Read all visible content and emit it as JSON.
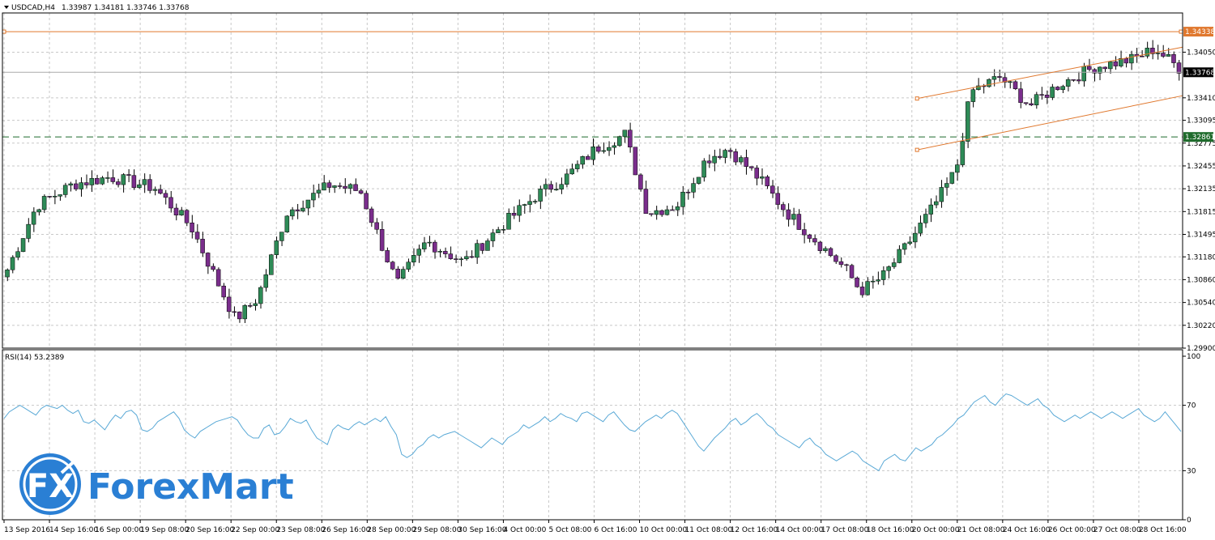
{
  "header": {
    "symbol": "USDCAD,H4",
    "ohlc": "1.33987 1.34181 1.33746 1.33768"
  },
  "indicator": {
    "label": "RSI(14) 53.2389"
  },
  "logo": {
    "fx": "FX",
    "brand": "ForexMart"
  },
  "colors": {
    "bull": "#2e8b57",
    "bear": "#7a2d8c",
    "wick": "#000000",
    "grid": "#c8c8c8",
    "resistance": "#e0782e",
    "support": "#1f6b2c",
    "channel": "#e0782e",
    "rsi_line": "#5aa9d6",
    "brand_blue": "#2a7fd4",
    "brand_dark": "#1a4f9c"
  },
  "chart_data": [
    {
      "type": "candlestick",
      "title": "",
      "y_ticks": [
        1.3405,
        1.3341,
        1.33095,
        1.32775,
        1.32455,
        1.32135,
        1.31815,
        1.31495,
        1.3118,
        1.3086,
        1.3054,
        1.3022,
        1.299
      ],
      "ylim": [
        1.299,
        1.346
      ],
      "x_ticks": [
        "13 Sep 2016",
        "14 Sep 16:00",
        "16 Sep 00:00",
        "19 Sep 08:00",
        "20 Sep 16:00",
        "22 Sep 00:00",
        "23 Sep 08:00",
        "26 Sep 16:00",
        "28 Sep 00:00",
        "29 Sep 08:00",
        "30 Sep 16:00",
        "4 Oct 00:00",
        "5 Oct 08:00",
        "6 Oct 16:00",
        "10 Oct 00:00",
        "11 Oct 08:00",
        "12 Oct 16:00",
        "14 Oct 00:00",
        "17 Oct 08:00",
        "18 Oct 16:00",
        "20 Oct 00:00",
        "21 Oct 08:00",
        "24 Oct 16:00",
        "26 Oct 00:00",
        "27 Oct 08:00",
        "28 Oct 16:00"
      ],
      "price_tags": [
        {
          "value": "1.34338",
          "kind": "resistance"
        },
        {
          "value": "1.33768",
          "kind": "current"
        },
        {
          "value": "1.32861",
          "kind": "support"
        }
      ],
      "resistance_level": 1.34338,
      "support_level": 1.32861,
      "current_price": 1.33768,
      "channel": {
        "upper": [
          [
            0.775,
            1.334
          ],
          [
            1.0,
            1.3412
          ]
        ],
        "lower": [
          [
            0.775,
            1.3268
          ],
          [
            1.0,
            1.3344
          ]
        ]
      },
      "grid": true
    },
    {
      "type": "line",
      "title": "",
      "name": "RSI(14)",
      "y_ticks": [
        100,
        70,
        30,
        0
      ],
      "ylim": [
        0,
        100
      ],
      "last_value": 53.2389,
      "values": [
        62,
        66,
        68,
        70,
        68,
        66,
        64,
        68,
        70,
        69,
        68,
        70,
        67,
        65,
        67,
        60,
        59,
        61,
        58,
        55,
        60,
        64,
        62,
        66,
        67,
        64,
        55,
        54,
        56,
        60,
        62,
        64,
        66,
        62,
        55,
        52,
        50,
        54,
        56,
        58,
        60,
        61,
        62,
        63,
        61,
        56,
        52,
        50,
        50,
        56,
        58,
        52,
        53,
        57,
        62,
        60,
        59,
        61,
        55,
        50,
        48,
        46,
        55,
        58,
        56,
        55,
        58,
        60,
        58,
        60,
        62,
        60,
        63,
        57,
        52,
        40,
        38,
        40,
        44,
        46,
        50,
        52,
        50,
        52,
        53,
        54,
        52,
        50,
        48,
        46,
        44,
        47,
        50,
        48,
        46,
        50,
        52,
        54,
        58,
        56,
        58,
        60,
        63,
        60,
        62,
        65,
        63,
        62,
        60,
        65,
        66,
        64,
        62,
        60,
        64,
        66,
        62,
        58,
        55,
        54,
        57,
        60,
        62,
        64,
        62,
        65,
        67,
        65,
        60,
        55,
        50,
        45,
        42,
        46,
        50,
        53,
        56,
        60,
        62,
        58,
        60,
        63,
        65,
        62,
        58,
        56,
        52,
        50,
        48,
        46,
        44,
        48,
        50,
        46,
        44,
        40,
        38,
        36,
        38,
        40,
        42,
        40,
        36,
        34,
        32,
        30,
        36,
        38,
        40,
        37,
        36,
        40,
        44,
        42,
        44,
        46,
        50,
        52,
        55,
        58,
        62,
        64,
        68,
        72,
        74,
        76,
        72,
        70,
        74,
        77,
        76,
        74,
        72,
        70,
        72,
        74,
        70,
        68,
        64,
        62,
        60,
        62,
        64,
        62,
        64,
        66,
        64,
        62,
        64,
        66,
        64,
        62,
        64,
        66,
        68,
        64,
        62,
        60,
        62,
        66,
        62,
        58,
        54
      ]
    }
  ]
}
